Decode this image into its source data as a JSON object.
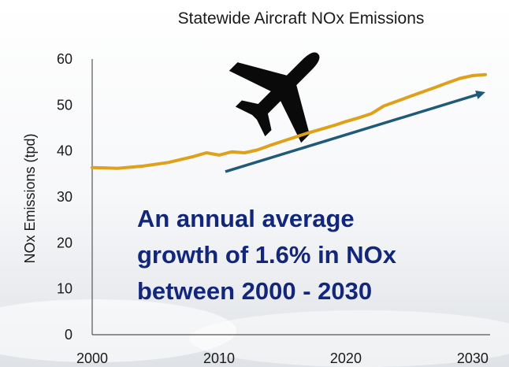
{
  "chart_data": {
    "type": "line",
    "title": "Statewide Aircraft NOx Emissions",
    "xlabel": "",
    "ylabel": "NOx Emissions (tpd)",
    "xlim": [
      2000,
      2031
    ],
    "ylim": [
      0,
      60
    ],
    "x_ticks": [
      2000,
      2010,
      2020,
      2030
    ],
    "y_ticks": [
      0,
      10,
      20,
      30,
      40,
      50,
      60
    ],
    "grid": false,
    "series": [
      {
        "color": "#DDA11B",
        "points": [
          [
            2000,
            36.4
          ],
          [
            2002,
            36.2
          ],
          [
            2004,
            36.7
          ],
          [
            2006,
            37.5
          ],
          [
            2008,
            38.8
          ],
          [
            2009,
            39.6
          ],
          [
            2010,
            39.1
          ],
          [
            2011,
            39.8
          ],
          [
            2012,
            39.6
          ],
          [
            2013,
            40.2
          ],
          [
            2014,
            41.2
          ],
          [
            2015,
            42.1
          ],
          [
            2016,
            43.0
          ],
          [
            2017,
            43.9
          ],
          [
            2018,
            44.7
          ],
          [
            2019,
            45.5
          ],
          [
            2020,
            46.4
          ],
          [
            2021,
            47.2
          ],
          [
            2022,
            48.1
          ],
          [
            2023,
            49.8
          ],
          [
            2024,
            50.8
          ],
          [
            2025,
            51.8
          ],
          [
            2026,
            52.8
          ],
          [
            2027,
            53.8
          ],
          [
            2028,
            54.8
          ],
          [
            2029,
            55.8
          ],
          [
            2030,
            56.4
          ],
          [
            2031,
            56.6
          ]
        ]
      }
    ],
    "trend_arrow": {
      "from": [
        2010.5,
        35.5
      ],
      "to": [
        2031,
        52.8
      ],
      "color": "#1F5A78"
    },
    "annotation": [
      "An annual average",
      "growth of 1.6% in NOx",
      "between 2000 - 2030"
    ],
    "icon": "airplane-icon"
  }
}
